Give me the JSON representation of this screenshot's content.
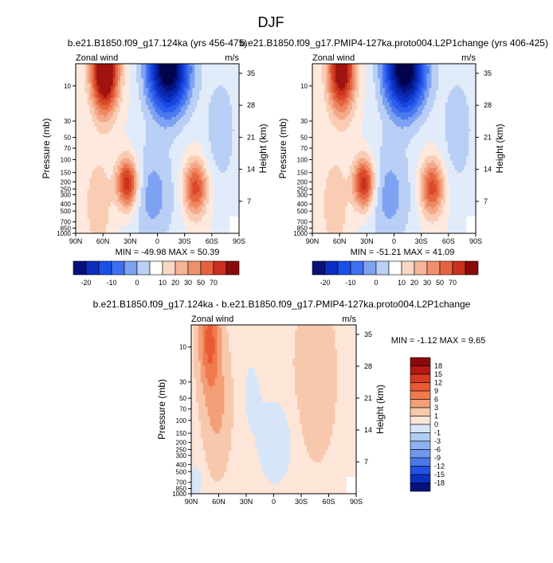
{
  "figure": {
    "title": "DJF"
  },
  "chart_data": [
    {
      "type": "heatmap",
      "id": "panel-ctrl",
      "title": "b.e21.B1850.f09_g17.124ka (yrs 456-475)",
      "left_label": "Zonal wind",
      "right_label": "m/s",
      "xlabel": "",
      "ylabel": "Pressure (mb)",
      "ylabel_right": "Height (km)",
      "x_ticks": [
        "90N",
        "60N",
        "30N",
        "0",
        "30S",
        "60S",
        "90S"
      ],
      "y_ticks": [
        "10",
        "30",
        "50",
        "70",
        "100",
        "150",
        "200",
        "250",
        "300",
        "400",
        "500",
        "700",
        "850",
        "1000"
      ],
      "y_right_ticks": [
        "35",
        "28",
        "21",
        "14",
        "7"
      ],
      "stats_text": "MIN = -49.98  MAX =  50.39",
      "min": -49.98,
      "max": 50.39,
      "colorbar_orientation": "horizontal",
      "colorbar_labels": [
        "-20",
        "-10",
        "0",
        "10",
        "20",
        "30",
        "50",
        "70"
      ],
      "colorbar_colors": [
        "#08107a",
        "#0a2fc0",
        "#1950e8",
        "#3e6ff0",
        "#7ea2f2",
        "#bcd0f5",
        "#ffffff",
        "#f8d7c4",
        "#f5b597",
        "#f0906b",
        "#e5623f",
        "#c9301e",
        "#8a0a0a"
      ],
      "features": [
        {
          "kind": "jet",
          "lat": 57,
          "p": 8,
          "value": 50
        },
        {
          "kind": "jet",
          "lat": 33,
          "p": 200,
          "value": 38
        },
        {
          "kind": "jet",
          "lat": -42,
          "p": 250,
          "value": 30
        },
        {
          "kind": "easterly",
          "lat": -12,
          "p": 8,
          "value": -50
        }
      ]
    },
    {
      "type": "heatmap",
      "id": "panel-pmip",
      "title": "b.e21.B1850.f09_g17.PMIP4-127ka.proto004.L2P1change (yrs 406-425)",
      "left_label": "Zonal wind",
      "right_label": "m/s",
      "xlabel": "",
      "ylabel": "Pressure (mb)",
      "ylabel_right": "Height (km)",
      "x_ticks": [
        "90N",
        "60N",
        "30N",
        "0",
        "30S",
        "60S",
        "90S"
      ],
      "y_ticks": [
        "10",
        "30",
        "50",
        "70",
        "100",
        "150",
        "200",
        "250",
        "300",
        "400",
        "500",
        "700",
        "850",
        "1000"
      ],
      "y_right_ticks": [
        "35",
        "28",
        "21",
        "14",
        "7"
      ],
      "stats_text": "MIN = -51.21  MAX =  41.09",
      "min": -51.21,
      "max": 41.09,
      "colorbar_orientation": "horizontal",
      "colorbar_labels": [
        "-20",
        "-10",
        "0",
        "10",
        "20",
        "30",
        "50",
        "70"
      ],
      "colorbar_colors": [
        "#08107a",
        "#0a2fc0",
        "#1950e8",
        "#3e6ff0",
        "#7ea2f2",
        "#bcd0f5",
        "#ffffff",
        "#f8d7c4",
        "#f5b597",
        "#f0906b",
        "#e5623f",
        "#c9301e",
        "#8a0a0a"
      ],
      "features": [
        {
          "kind": "jet",
          "lat": 57,
          "p": 8,
          "value": 41
        },
        {
          "kind": "jet",
          "lat": 33,
          "p": 200,
          "value": 38
        },
        {
          "kind": "jet",
          "lat": -42,
          "p": 250,
          "value": 30
        },
        {
          "kind": "easterly",
          "lat": -12,
          "p": 8,
          "value": -51
        }
      ]
    },
    {
      "type": "heatmap",
      "id": "panel-diff",
      "title": "b.e21.B1850.f09_g17.124ka - b.e21.B1850.f09_g17.PMIP4-127ka.proto004.L2P1change",
      "left_label": "Zonal wind",
      "right_label": "m/s",
      "xlabel": "",
      "ylabel": "Pressure (mb)",
      "ylabel_right": "Height (km)",
      "x_ticks": [
        "90N",
        "60N",
        "30N",
        "0",
        "30S",
        "60S",
        "90S"
      ],
      "y_ticks": [
        "10",
        "30",
        "50",
        "70",
        "100",
        "150",
        "200",
        "250",
        "300",
        "400",
        "500",
        "700",
        "850",
        "1000"
      ],
      "y_right_ticks": [
        "35",
        "28",
        "21",
        "14",
        "7"
      ],
      "stats_text": "MIN =  -1.12  MAX =   9.65",
      "min": -1.12,
      "max": 9.65,
      "colorbar_orientation": "vertical",
      "colorbar_labels": [
        "18",
        "15",
        "12",
        "9",
        "6",
        "3",
        "1",
        "0",
        "-1",
        "-3",
        "-6",
        "-9",
        "-12",
        "-15",
        "-18"
      ],
      "colorbar_colors": [
        "#8a0a0a",
        "#b51a12",
        "#d63a1f",
        "#ea5a32",
        "#f07a4e",
        "#f39f78",
        "#f8c8ad",
        "#fde6d8",
        "#d6e6f8",
        "#b1cdf3",
        "#8eb2f0",
        "#6f97ee",
        "#4a78ec",
        "#2550e6",
        "#0d2fc4",
        "#05127e"
      ],
      "features": [
        {
          "kind": "jet",
          "lat": 70,
          "p": 10,
          "value": 9.6
        },
        {
          "kind": "jet",
          "lat": -45,
          "p": 15,
          "value": 2
        },
        {
          "kind": "weak_negative",
          "lat": 0,
          "p": 250,
          "value": -1
        }
      ]
    }
  ]
}
